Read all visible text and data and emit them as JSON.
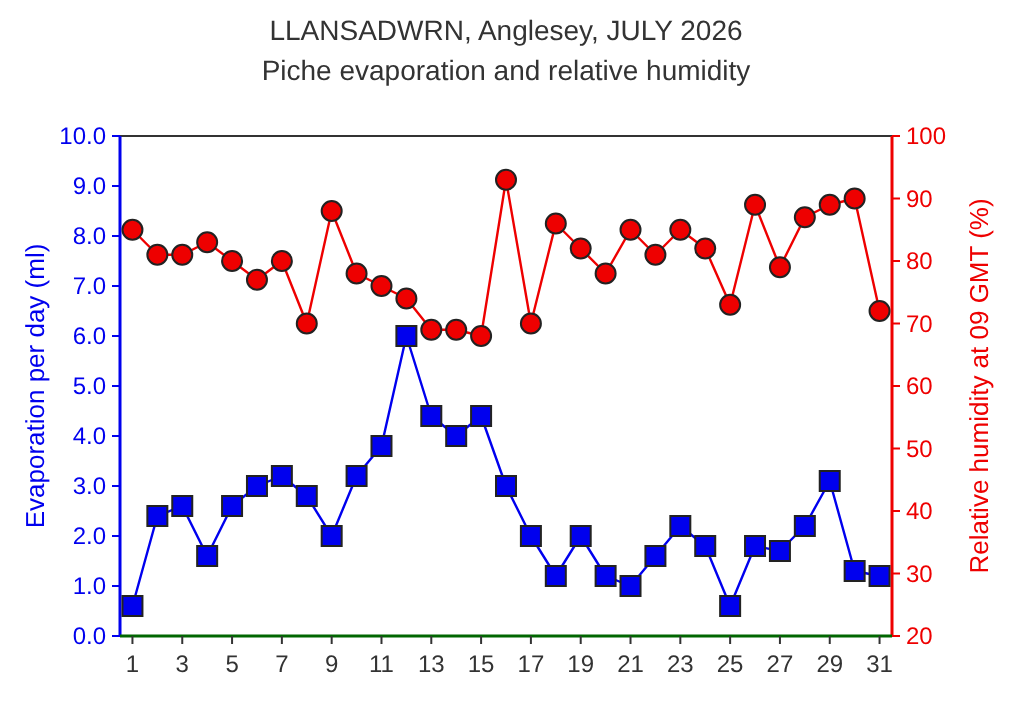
{
  "chart_data": {
    "type": "line",
    "title": "LLANSADWRN, Anglesey, JULY 2026",
    "subtitle": "Piche evaporation and relative humidity",
    "xlabel": null,
    "ylabel": "Evaporation per day (ml)",
    "y2label": "Relative humidity at 09 GMT (%)",
    "x": [
      1,
      2,
      3,
      4,
      5,
      6,
      7,
      8,
      9,
      10,
      11,
      12,
      13,
      14,
      15,
      16,
      17,
      18,
      19,
      20,
      21,
      22,
      23,
      24,
      25,
      26,
      27,
      28,
      29,
      30,
      31
    ],
    "xlim": [
      0.5,
      31.5
    ],
    "xticks": [
      1,
      3,
      5,
      7,
      9,
      11,
      13,
      15,
      17,
      19,
      21,
      23,
      25,
      27,
      29,
      31
    ],
    "ylim": [
      0,
      10
    ],
    "yticks": [
      {
        "value": 0,
        "label": "0.0"
      },
      {
        "value": 1,
        "label": "1.0"
      },
      {
        "value": 2,
        "label": "2.0"
      },
      {
        "value": 3,
        "label": "3.0"
      },
      {
        "value": 4,
        "label": "4.0"
      },
      {
        "value": 5,
        "label": "5.0"
      },
      {
        "value": 6,
        "label": "6.0"
      },
      {
        "value": 7,
        "label": "7.0"
      },
      {
        "value": 8,
        "label": "8.0"
      },
      {
        "value": 9,
        "label": "9.0"
      },
      {
        "value": 10,
        "label": "10.0"
      }
    ],
    "y2lim": [
      20,
      100
    ],
    "y2ticks": [
      20,
      30,
      40,
      50,
      60,
      70,
      80,
      90,
      100
    ],
    "series": [
      {
        "color": "#0000ee",
        "marker": "square",
        "values": [
          0.6,
          2.4,
          2.6,
          1.6,
          2.6,
          3.0,
          3.2,
          2.8,
          2.0,
          3.2,
          3.8,
          6.0,
          4.4,
          4.0,
          4.4,
          3.0,
          2.0,
          1.2,
          2.0,
          1.2,
          1.0,
          1.6,
          2.2,
          1.8,
          0.6,
          1.8,
          1.7,
          2.2,
          3.1,
          1.3,
          1.2
        ]
      },
      {
        "color": "#ee0000",
        "marker": "circle",
        "axis": "y2",
        "values": [
          85,
          81,
          81,
          83,
          80,
          77,
          80,
          70,
          88,
          78,
          76,
          74,
          69,
          69,
          68,
          93,
          70,
          86,
          82,
          78,
          85,
          81,
          85,
          82,
          73,
          89,
          79,
          87,
          89,
          90,
          72
        ]
      }
    ],
    "grid": false,
    "line_style": "solid"
  }
}
